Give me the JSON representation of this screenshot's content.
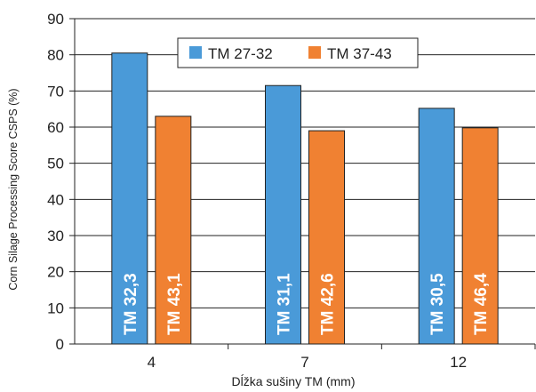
{
  "chart_data": {
    "type": "bar",
    "categories": [
      "4",
      "7",
      "12"
    ],
    "series": [
      {
        "name": "TM 27-32",
        "color": "#4a9ad8",
        "values": [
          80.5,
          71.5,
          65.2
        ],
        "labels": [
          "TM 32,3",
          "TM 31,1",
          "TM 30,5"
        ]
      },
      {
        "name": "TM 37-43",
        "color": "#f08132",
        "values": [
          63.0,
          59.0,
          59.8
        ],
        "labels": [
          "TM 43,1",
          "TM 42,6",
          "TM 46,4"
        ]
      }
    ],
    "xlabel": "Dĺžka sušiny TM (mm)",
    "ylabel": "Corn Silage Processing Score CSPS (%)",
    "ylim": [
      0,
      90
    ],
    "yticks": [
      0,
      10,
      20,
      30,
      40,
      50,
      60,
      70,
      80,
      90
    ],
    "grid": true,
    "legend_position": "top-right"
  }
}
